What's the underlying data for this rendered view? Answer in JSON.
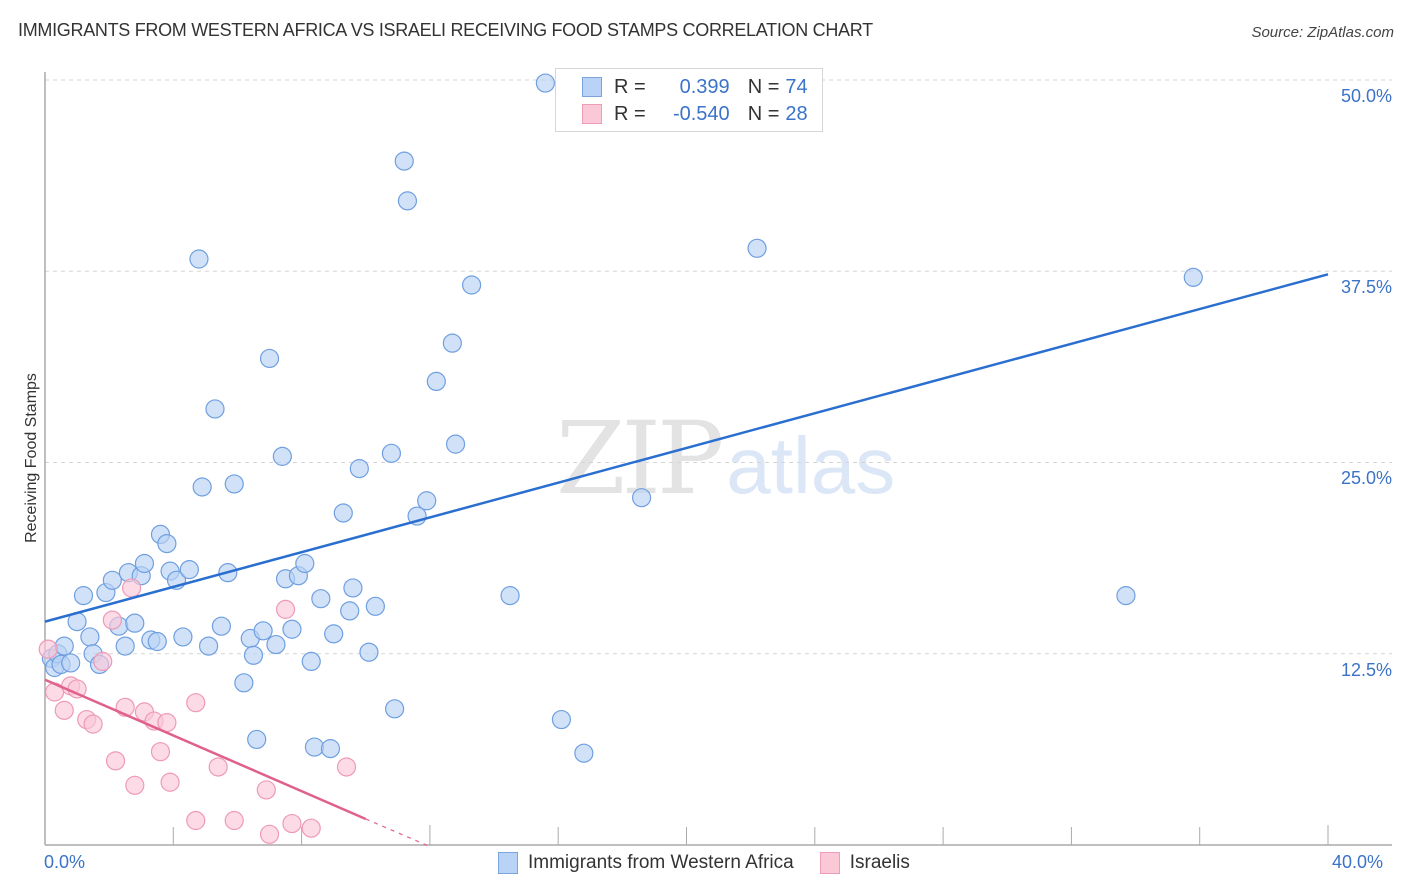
{
  "header": {
    "title": "IMMIGRANTS FROM WESTERN AFRICA VS ISRAELI RECEIVING FOOD STAMPS CORRELATION CHART",
    "source": "Source: ZipAtlas.com"
  },
  "legend": {
    "series": [
      {
        "swatch_color": "#b8d3f5",
        "border_color": "#7ba5de",
        "r_label": "R =",
        "r_value": "0.399",
        "n_label": "N =",
        "n_value": "74"
      },
      {
        "swatch_color": "#fbc8d8",
        "border_color": "#ef9cb7",
        "r_label": "R =",
        "r_value": "-0.540",
        "n_label": "N =",
        "n_value": "28"
      }
    ]
  },
  "axes": {
    "y_label": "Receiving Food Stamps",
    "y_ticks": [
      "50.0%",
      "37.5%",
      "25.0%",
      "12.5%"
    ],
    "x_ticks": [
      "0.0%",
      "40.0%"
    ]
  },
  "bottom_legend": {
    "items": [
      {
        "label": "Immigrants from Western Africa"
      },
      {
        "label": "Israelis"
      }
    ]
  },
  "watermark": {
    "zip": "ZIP",
    "atlas": "atlas"
  },
  "colors": {
    "blue_fill": "#b8d3f5",
    "blue_stroke": "#6f9fe0",
    "blue_line": "#2a6fd0",
    "pink_fill": "#fbc8d8",
    "pink_stroke": "#ee9ab6",
    "pink_line": "#e0608d",
    "tick_text": "#3b73c9"
  },
  "chart_data": {
    "type": "scatter",
    "title": "IMMIGRANTS FROM WESTERN AFRICA VS ISRAELI RECEIVING FOOD STAMPS CORRELATION CHART",
    "xlabel": "",
    "ylabel": "Receiving Food Stamps",
    "xlim": [
      0,
      40
    ],
    "ylim": [
      0,
      50
    ],
    "x_tick_labels": [
      "0.0%",
      "40.0%"
    ],
    "y_tick_labels": [
      "12.5%",
      "25.0%",
      "37.5%",
      "50.0%"
    ],
    "grid": "horizontal dashed",
    "legend_position": "bottom",
    "series": [
      {
        "name": "Immigrants from Western Africa",
        "R": 0.399,
        "N": 74,
        "trend": {
          "x": [
            0,
            40
          ],
          "y": [
            14.6,
            37.3
          ]
        },
        "points": [
          [
            0.2,
            12.2
          ],
          [
            0.3,
            11.6
          ],
          [
            0.4,
            12.5
          ],
          [
            0.5,
            11.8
          ],
          [
            0.6,
            13.0
          ],
          [
            0.8,
            11.9
          ],
          [
            1.0,
            14.6
          ],
          [
            1.2,
            16.3
          ],
          [
            1.4,
            13.6
          ],
          [
            1.5,
            12.5
          ],
          [
            1.7,
            11.8
          ],
          [
            1.9,
            16.5
          ],
          [
            2.1,
            17.3
          ],
          [
            2.3,
            14.3
          ],
          [
            2.5,
            13.0
          ],
          [
            2.6,
            17.8
          ],
          [
            2.8,
            14.5
          ],
          [
            3.0,
            17.6
          ],
          [
            3.1,
            18.4
          ],
          [
            3.3,
            13.4
          ],
          [
            3.5,
            13.3
          ],
          [
            3.6,
            20.3
          ],
          [
            3.8,
            19.7
          ],
          [
            3.9,
            17.9
          ],
          [
            4.1,
            17.3
          ],
          [
            4.3,
            13.6
          ],
          [
            4.5,
            18.0
          ],
          [
            4.8,
            38.3
          ],
          [
            4.9,
            23.4
          ],
          [
            5.1,
            13.0
          ],
          [
            5.3,
            28.5
          ],
          [
            5.5,
            14.3
          ],
          [
            5.7,
            17.8
          ],
          [
            5.9,
            23.6
          ],
          [
            6.2,
            10.6
          ],
          [
            6.4,
            13.5
          ],
          [
            6.5,
            12.4
          ],
          [
            6.6,
            6.9
          ],
          [
            6.8,
            14.0
          ],
          [
            7.0,
            31.8
          ],
          [
            7.2,
            13.1
          ],
          [
            7.4,
            25.4
          ],
          [
            7.5,
            17.4
          ],
          [
            7.7,
            14.1
          ],
          [
            7.9,
            17.6
          ],
          [
            8.1,
            18.4
          ],
          [
            8.3,
            12.0
          ],
          [
            8.4,
            6.4
          ],
          [
            8.6,
            16.1
          ],
          [
            8.9,
            6.3
          ],
          [
            9.0,
            13.8
          ],
          [
            9.3,
            21.7
          ],
          [
            9.5,
            15.3
          ],
          [
            9.6,
            16.8
          ],
          [
            9.8,
            24.6
          ],
          [
            10.1,
            12.6
          ],
          [
            10.3,
            15.6
          ],
          [
            10.8,
            25.6
          ],
          [
            10.9,
            8.9
          ],
          [
            11.2,
            44.7
          ],
          [
            11.3,
            42.1
          ],
          [
            11.6,
            21.5
          ],
          [
            11.9,
            22.5
          ],
          [
            12.2,
            30.3
          ],
          [
            12.7,
            32.8
          ],
          [
            12.8,
            26.2
          ],
          [
            13.3,
            36.6
          ],
          [
            14.5,
            16.3
          ],
          [
            15.6,
            49.8
          ],
          [
            16.1,
            8.2
          ],
          [
            16.8,
            6.0
          ],
          [
            18.6,
            22.7
          ],
          [
            22.2,
            39.0
          ],
          [
            33.7,
            16.3
          ],
          [
            35.8,
            37.1
          ]
        ]
      },
      {
        "name": "Israelis",
        "R": -0.54,
        "N": 28,
        "trend": {
          "x": [
            0,
            10
          ],
          "y": [
            10.8,
            1.7
          ]
        },
        "trend_dashed_extension": {
          "x": [
            10,
            12
          ],
          "y": [
            1.7,
            -0.1
          ]
        },
        "points": [
          [
            0.1,
            12.8
          ],
          [
            0.3,
            10.0
          ],
          [
            0.6,
            8.8
          ],
          [
            0.8,
            10.4
          ],
          [
            1.0,
            10.2
          ],
          [
            1.3,
            8.2
          ],
          [
            1.5,
            7.9
          ],
          [
            1.8,
            12.0
          ],
          [
            2.1,
            14.7
          ],
          [
            2.2,
            5.5
          ],
          [
            2.5,
            9.0
          ],
          [
            2.7,
            16.8
          ],
          [
            2.8,
            3.9
          ],
          [
            3.1,
            8.7
          ],
          [
            3.4,
            8.1
          ],
          [
            3.6,
            6.1
          ],
          [
            3.8,
            8.0
          ],
          [
            3.9,
            4.1
          ],
          [
            4.7,
            9.3
          ],
          [
            4.7,
            1.6
          ],
          [
            5.4,
            5.1
          ],
          [
            5.9,
            1.6
          ],
          [
            6.9,
            3.6
          ],
          [
            7.0,
            0.7
          ],
          [
            7.5,
            15.4
          ],
          [
            7.7,
            1.4
          ],
          [
            8.3,
            1.1
          ],
          [
            9.4,
            5.1
          ]
        ]
      }
    ]
  }
}
